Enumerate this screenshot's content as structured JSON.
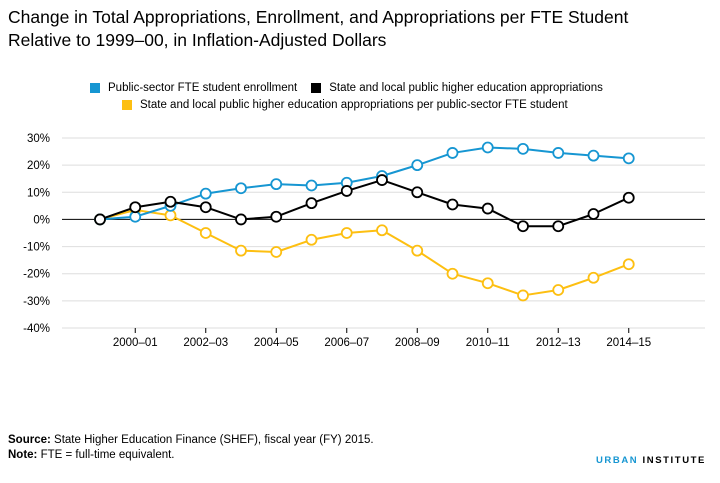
{
  "title_line1": "Change in Total Appropriations, Enrollment, and Appropriations per FTE Student",
  "title_line2": "Relative to 1999–00, in Inflation-Adjusted Dollars",
  "footer": {
    "source_label": "Source:",
    "source_text": "State Higher Education Finance (SHEF), fiscal year (FY) 2015.",
    "note_label": "Note:",
    "note_text": "FTE = full-time equivalent."
  },
  "brand": {
    "part1": "URBAN",
    "part2": "INSTITUTE"
  },
  "colors": {
    "blue": "#1696d2",
    "black": "#000000",
    "yellow": "#fdbf11",
    "grid": "#dedede"
  },
  "chart_data": {
    "type": "line",
    "x": [
      "1999-00",
      "2000-01",
      "2001-02",
      "2002-03",
      "2003-04",
      "2004-05",
      "2005-06",
      "2006-07",
      "2007-08",
      "2008-09",
      "2009-10",
      "2010-11",
      "2011-12",
      "2012-13",
      "2013-14",
      "2014-15"
    ],
    "tick_labels": [
      "2000–01",
      "2002–03",
      "2004–05",
      "2006–07",
      "2008–09",
      "2010–11",
      "2012–13",
      "2014–15"
    ],
    "y_ticks": [
      "30%",
      "20%",
      "10%",
      "0%",
      "-10%",
      "-20%",
      "-30%",
      "-40%"
    ],
    "ylim": [
      -40,
      30
    ],
    "grid": true,
    "legend_position": "top",
    "series": [
      {
        "name": "Public-sector FTE student enrollment",
        "color": "#1696d2",
        "values": [
          0,
          1,
          5,
          9.5,
          11.5,
          13,
          12.5,
          13.5,
          16,
          20,
          24.5,
          26.5,
          26,
          24.5,
          23.5,
          22.5
        ]
      },
      {
        "name": "State and local public higher education appropriations",
        "color": "#000000",
        "values": [
          0,
          4.5,
          6.5,
          4.5,
          0,
          1,
          6,
          10.5,
          14.5,
          10,
          5.5,
          4,
          -2.5,
          -2.5,
          2,
          8
        ]
      },
      {
        "name": "State and local public higher education appropriations per public-sector FTE student",
        "color": "#fdbf11",
        "values": [
          0,
          3.5,
          1.5,
          -5,
          -11.5,
          -12,
          -7.5,
          -5,
          -4,
          -11.5,
          -20,
          -23.5,
          -28,
          -26,
          -21.5,
          -16.5
        ]
      }
    ]
  }
}
